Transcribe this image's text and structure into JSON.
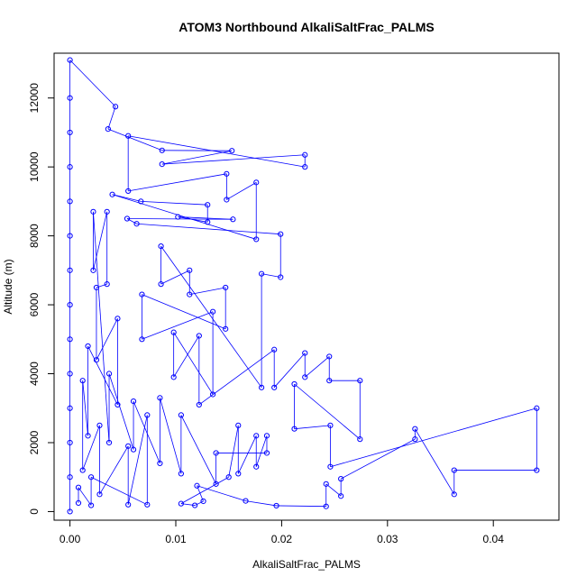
{
  "chart_data": {
    "type": "scatter",
    "title": "ATOM3 Northbound AlkaliSaltFrac_PALMS",
    "xlabel": "AlkaliSaltFrac_PALMS",
    "ylabel": "Altitude (m)",
    "xlim": [
      -0.0015,
      0.0462
    ],
    "ylim": [
      -250,
      13300
    ],
    "x_ticks": [
      0.0,
      0.01,
      0.02,
      0.03,
      0.04
    ],
    "x_tick_labels": [
      "0.00",
      "0.01",
      "0.02",
      "0.03",
      "0.04"
    ],
    "y_ticks": [
      0,
      2000,
      4000,
      6000,
      8000,
      10000,
      12000
    ],
    "y_tick_labels": [
      "0",
      "2000",
      "4000",
      "6000",
      "8000",
      "10000",
      "12000"
    ],
    "grid": false,
    "legend": "none",
    "colors": {
      "points": "#0000ff",
      "lines": "#0000ff",
      "axes": "#000000"
    },
    "series": [
      {
        "values": [
          {
            "x": 0.0,
            "y": 0
          },
          {
            "x": 0.0,
            "y": 1000
          },
          {
            "x": 0.0,
            "y": 2000
          },
          {
            "x": 0.0,
            "y": 3000
          },
          {
            "x": 0.0,
            "y": 4000
          },
          {
            "x": 0.0,
            "y": 5000
          },
          {
            "x": 0.0,
            "y": 6000
          },
          {
            "x": 0.0,
            "y": 7000
          },
          {
            "x": 0.0,
            "y": 8000
          },
          {
            "x": 0.0,
            "y": 9000
          },
          {
            "x": 0.0,
            "y": 10000
          },
          {
            "x": 0.0,
            "y": 11000
          },
          {
            "x": 0.0,
            "y": 12000
          },
          {
            "x": 0.0,
            "y": 13100
          },
          {
            "x": 0.0043,
            "y": 11750
          },
          {
            "x": 0.0036,
            "y": 11100
          },
          {
            "x": 0.0087,
            "y": 10480
          },
          {
            "x": 0.0153,
            "y": 10470
          },
          {
            "x": 0.0087,
            "y": 10080
          },
          {
            "x": 0.0222,
            "y": 10350
          },
          {
            "x": 0.0222,
            "y": 10000
          },
          {
            "x": 0.0055,
            "y": 10900
          },
          {
            "x": 0.0055,
            "y": 9300
          },
          {
            "x": 0.0148,
            "y": 9800
          },
          {
            "x": 0.0148,
            "y": 9050
          },
          {
            "x": 0.0176,
            "y": 9550
          },
          {
            "x": 0.0176,
            "y": 7900
          },
          {
            "x": 0.004,
            "y": 9200
          },
          {
            "x": 0.0067,
            "y": 9000
          },
          {
            "x": 0.013,
            "y": 8900
          },
          {
            "x": 0.013,
            "y": 8400
          },
          {
            "x": 0.0102,
            "y": 8550
          },
          {
            "x": 0.0154,
            "y": 8480
          },
          {
            "x": 0.0054,
            "y": 8500
          },
          {
            "x": 0.0063,
            "y": 8350
          },
          {
            "x": 0.0199,
            "y": 8050
          },
          {
            "x": 0.0199,
            "y": 6800
          },
          {
            "x": 0.0181,
            "y": 6900
          },
          {
            "x": 0.0181,
            "y": 3600
          },
          {
            "x": 0.0086,
            "y": 7700
          },
          {
            "x": 0.0086,
            "y": 6600
          },
          {
            "x": 0.0113,
            "y": 7000
          },
          {
            "x": 0.0113,
            "y": 6300
          },
          {
            "x": 0.0147,
            "y": 6500
          },
          {
            "x": 0.0147,
            "y": 5300
          },
          {
            "x": 0.0068,
            "y": 6300
          },
          {
            "x": 0.0068,
            "y": 5000
          },
          {
            "x": 0.0135,
            "y": 5800
          },
          {
            "x": 0.0135,
            "y": 3400
          },
          {
            "x": 0.0098,
            "y": 5200
          },
          {
            "x": 0.0098,
            "y": 3900
          },
          {
            "x": 0.0122,
            "y": 5100
          },
          {
            "x": 0.0122,
            "y": 3100
          },
          {
            "x": 0.0193,
            "y": 4700
          },
          {
            "x": 0.0193,
            "y": 3600
          },
          {
            "x": 0.0222,
            "y": 4600
          },
          {
            "x": 0.0222,
            "y": 3900
          },
          {
            "x": 0.0245,
            "y": 4500
          },
          {
            "x": 0.0245,
            "y": 3800
          },
          {
            "x": 0.0274,
            "y": 3800
          },
          {
            "x": 0.0274,
            "y": 2100
          },
          {
            "x": 0.0212,
            "y": 3700
          },
          {
            "x": 0.0212,
            "y": 2400
          },
          {
            "x": 0.0246,
            "y": 2500
          },
          {
            "x": 0.0246,
            "y": 1300
          },
          {
            "x": 0.0441,
            "y": 3000
          },
          {
            "x": 0.0441,
            "y": 1200
          },
          {
            "x": 0.0363,
            "y": 1200
          },
          {
            "x": 0.0363,
            "y": 500
          },
          {
            "x": 0.0326,
            "y": 2400
          },
          {
            "x": 0.0326,
            "y": 2100
          },
          {
            "x": 0.0256,
            "y": 950
          },
          {
            "x": 0.0256,
            "y": 450
          },
          {
            "x": 0.0242,
            "y": 800
          },
          {
            "x": 0.0242,
            "y": 150
          },
          {
            "x": 0.0195,
            "y": 170
          },
          {
            "x": 0.0166,
            "y": 310
          },
          {
            "x": 0.012,
            "y": 750
          },
          {
            "x": 0.0126,
            "y": 300
          },
          {
            "x": 0.0118,
            "y": 180
          },
          {
            "x": 0.0105,
            "y": 230
          },
          {
            "x": 0.015,
            "y": 1000
          },
          {
            "x": 0.0159,
            "y": 2500
          },
          {
            "x": 0.0159,
            "y": 1100
          },
          {
            "x": 0.0176,
            "y": 2200
          },
          {
            "x": 0.0176,
            "y": 1300
          },
          {
            "x": 0.0186,
            "y": 2200
          },
          {
            "x": 0.0186,
            "y": 1700
          },
          {
            "x": 0.0138,
            "y": 1700
          },
          {
            "x": 0.0138,
            "y": 800
          },
          {
            "x": 0.0105,
            "y": 2800
          },
          {
            "x": 0.0105,
            "y": 1100
          },
          {
            "x": 0.0085,
            "y": 3300
          },
          {
            "x": 0.0085,
            "y": 1400
          },
          {
            "x": 0.006,
            "y": 3200
          },
          {
            "x": 0.006,
            "y": 1800
          },
          {
            "x": 0.0037,
            "y": 4000
          },
          {
            "x": 0.0037,
            "y": 2000
          },
          {
            "x": 0.0022,
            "y": 8700
          },
          {
            "x": 0.0022,
            "y": 7000
          },
          {
            "x": 0.0035,
            "y": 8700
          },
          {
            "x": 0.0035,
            "y": 6600
          },
          {
            "x": 0.0025,
            "y": 6500
          },
          {
            "x": 0.0025,
            "y": 4400
          },
          {
            "x": 0.0045,
            "y": 5600
          },
          {
            "x": 0.0045,
            "y": 3100
          },
          {
            "x": 0.0017,
            "y": 4800
          },
          {
            "x": 0.0017,
            "y": 2200
          },
          {
            "x": 0.0012,
            "y": 3800
          },
          {
            "x": 0.0012,
            "y": 1200
          },
          {
            "x": 0.0028,
            "y": 2500
          },
          {
            "x": 0.0028,
            "y": 500
          },
          {
            "x": 0.0055,
            "y": 1900
          },
          {
            "x": 0.0055,
            "y": 200
          },
          {
            "x": 0.0073,
            "y": 2800
          },
          {
            "x": 0.0073,
            "y": 200
          },
          {
            "x": 0.002,
            "y": 1000
          },
          {
            "x": 0.002,
            "y": 180
          },
          {
            "x": 0.0008,
            "y": 700
          },
          {
            "x": 0.0008,
            "y": 250
          }
        ]
      }
    ]
  }
}
